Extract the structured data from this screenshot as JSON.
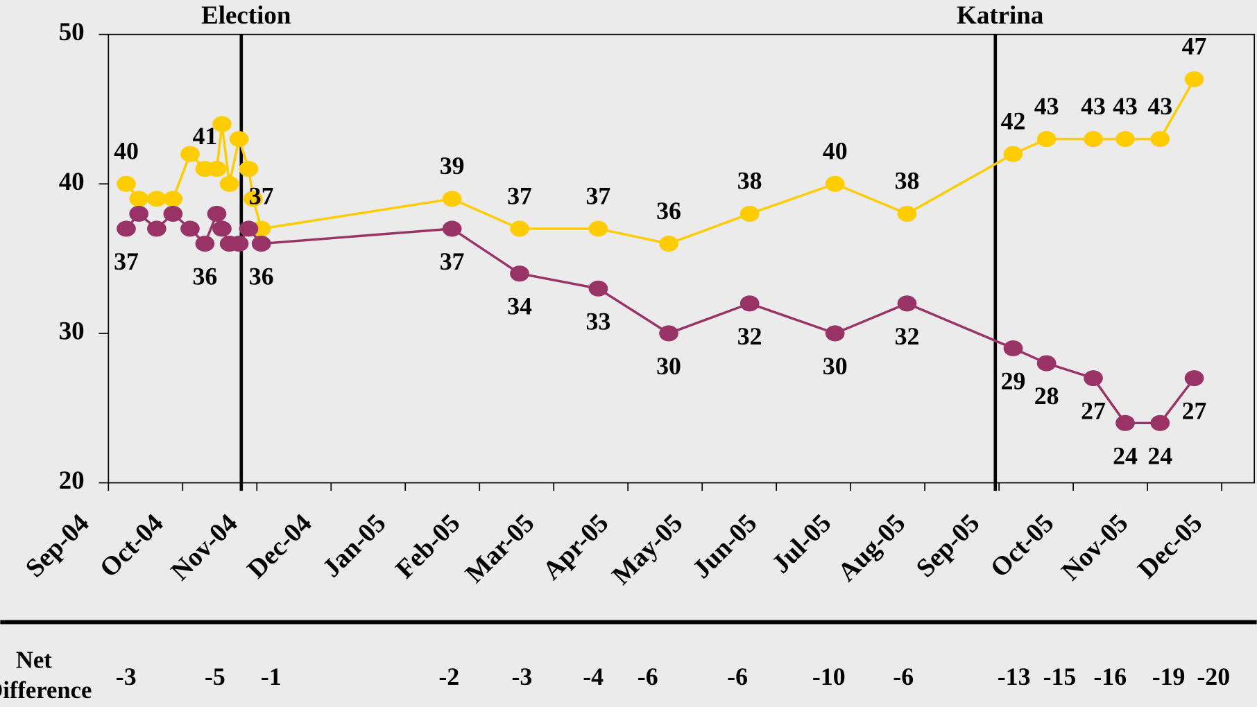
{
  "chart_data": {
    "type": "line",
    "annotations": [
      {
        "text": "Election",
        "x": 1.79
      },
      {
        "text": "Katrina",
        "x": 11.95
      }
    ],
    "xlim": [
      0,
      15.44
    ],
    "xticks": [
      {
        "value": 0,
        "label": "Sep-04"
      },
      {
        "value": 1,
        "label": "Oct-04"
      },
      {
        "value": 2,
        "label": "Nov-04"
      },
      {
        "value": 3,
        "label": "Dec-04"
      },
      {
        "value": 4,
        "label": "Jan-05"
      },
      {
        "value": 5,
        "label": "Feb-05"
      },
      {
        "value": 6,
        "label": "Mar-05"
      },
      {
        "value": 7,
        "label": "Apr-05"
      },
      {
        "value": 8,
        "label": "May-05"
      },
      {
        "value": 9,
        "label": "Jun-05"
      },
      {
        "value": 10,
        "label": "Jul-05"
      },
      {
        "value": 11,
        "label": "Aug-05"
      },
      {
        "value": 12,
        "label": "Sep-05"
      },
      {
        "value": 13,
        "label": "Oct-05"
      },
      {
        "value": 14,
        "label": "Nov-05"
      },
      {
        "value": 15,
        "label": "Dec-05"
      }
    ],
    "ylim": [
      20,
      50
    ],
    "yticks": [
      20,
      30,
      40,
      50
    ],
    "series": [
      {
        "color": "#ffcc00",
        "label_side": "above",
        "x": [
          0.24,
          0.41,
          0.65,
          0.87,
          1.1,
          1.3,
          1.46,
          1.53,
          1.63,
          1.76,
          1.89,
          1.95,
          2.06,
          4.63,
          5.54,
          6.6,
          7.55,
          8.64,
          9.79,
          10.76,
          12.19,
          12.64,
          13.27,
          13.7,
          14.17,
          14.63
        ],
        "values": [
          40,
          39,
          39,
          39,
          42,
          41,
          41,
          44,
          40,
          43,
          41,
          39,
          37,
          39,
          37,
          37,
          36,
          38,
          40,
          38,
          42,
          43,
          43,
          43,
          43,
          47
        ],
        "value_labels": [
          "40",
          null,
          null,
          null,
          null,
          "41",
          null,
          null,
          null,
          null,
          null,
          null,
          "37",
          "39",
          "37",
          "37",
          "36",
          "38",
          "40",
          "38",
          "42",
          "43",
          "43",
          "43",
          "43",
          "47"
        ]
      },
      {
        "color": "#993366",
        "label_side": "below",
        "x": [
          0.24,
          0.41,
          0.65,
          0.87,
          1.1,
          1.3,
          1.46,
          1.53,
          1.63,
          1.76,
          1.89,
          2.06,
          4.63,
          5.54,
          6.6,
          7.55,
          8.64,
          9.79,
          10.76,
          12.19,
          12.64,
          13.27,
          13.7,
          14.17,
          14.63
        ],
        "values": [
          37,
          38,
          37,
          38,
          37,
          36,
          38,
          37,
          36,
          36,
          37,
          36,
          37,
          34,
          33,
          30,
          32,
          30,
          32,
          29,
          28,
          27,
          24,
          24,
          27
        ],
        "value_labels": [
          "37",
          null,
          null,
          null,
          null,
          "36",
          null,
          null,
          null,
          null,
          null,
          "36",
          "37",
          "34",
          "33",
          "30",
          "32",
          "30",
          "32",
          "29",
          "28",
          "27",
          "24",
          "24",
          "27"
        ]
      }
    ],
    "net_difference": {
      "label": "Net Difference",
      "values": [
        -3,
        -5,
        -1,
        -2,
        -3,
        -4,
        -6,
        -6,
        -10,
        -6,
        -13,
        -15,
        -16,
        -19,
        -20
      ]
    }
  }
}
